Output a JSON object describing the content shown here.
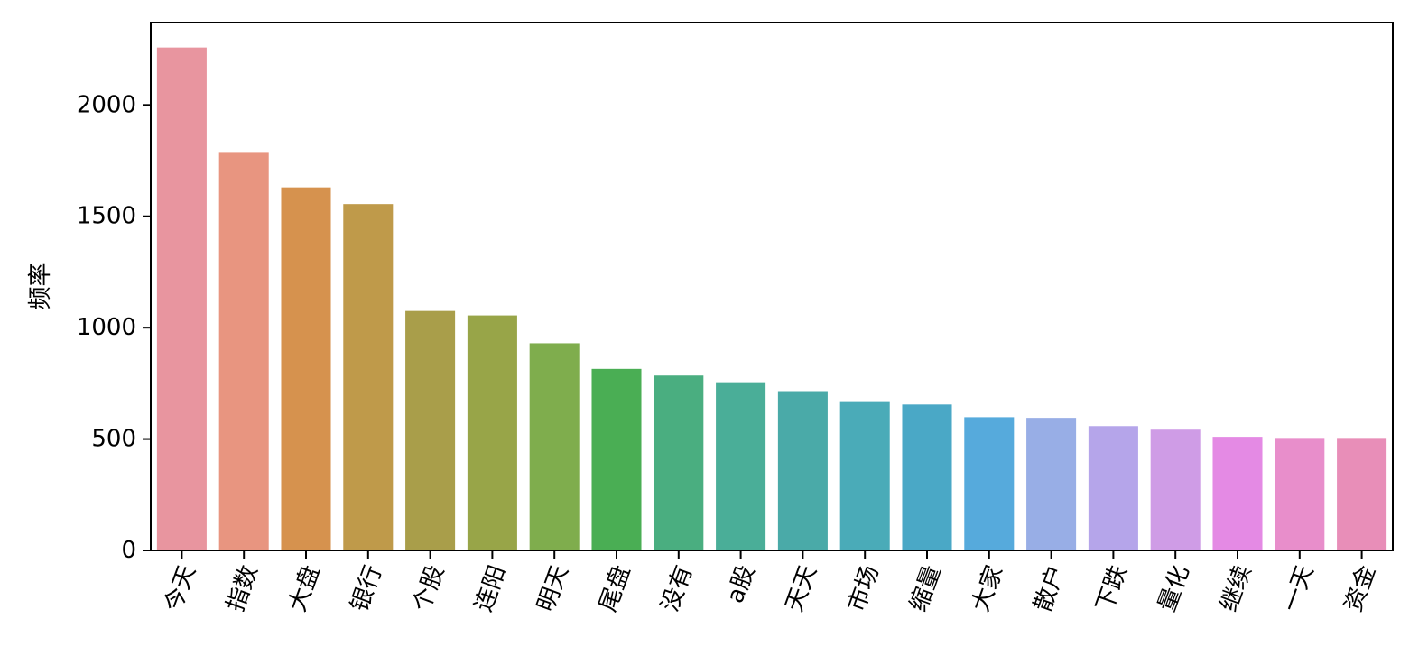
{
  "chart_data": {
    "type": "bar",
    "categories": [
      "今天",
      "指数",
      "大盘",
      "银行",
      "个股",
      "连阳",
      "明天",
      "尾盘",
      "没有",
      "a股",
      "天天",
      "市场",
      "缩量",
      "大家",
      "散户",
      "下跌",
      "量化",
      "继续",
      "一天",
      "资金"
    ],
    "values": [
      2258,
      1785,
      1630,
      1555,
      1075,
      1055,
      930,
      815,
      785,
      755,
      715,
      670,
      655,
      598,
      595,
      558,
      542,
      510,
      505,
      505
    ],
    "colors": [
      "#E8959F",
      "#E89580",
      "#D6924E",
      "#BF9A4A",
      "#A99E4A",
      "#98A548",
      "#7FAD4D",
      "#4AAE54",
      "#4AAE80",
      "#4AAE98",
      "#4AAAA8",
      "#4AABB8",
      "#4AA8C6",
      "#56AADC",
      "#98AEE6",
      "#B5A5EA",
      "#CF9CE6",
      "#E48AE4",
      "#E88ECB",
      "#E88EB8"
    ],
    "title": "",
    "xlabel": "",
    "ylabel": "频率",
    "ylim": [
      0,
      2370
    ],
    "yticks": [
      0,
      500,
      1000,
      1500,
      2000
    ],
    "grid": false
  }
}
